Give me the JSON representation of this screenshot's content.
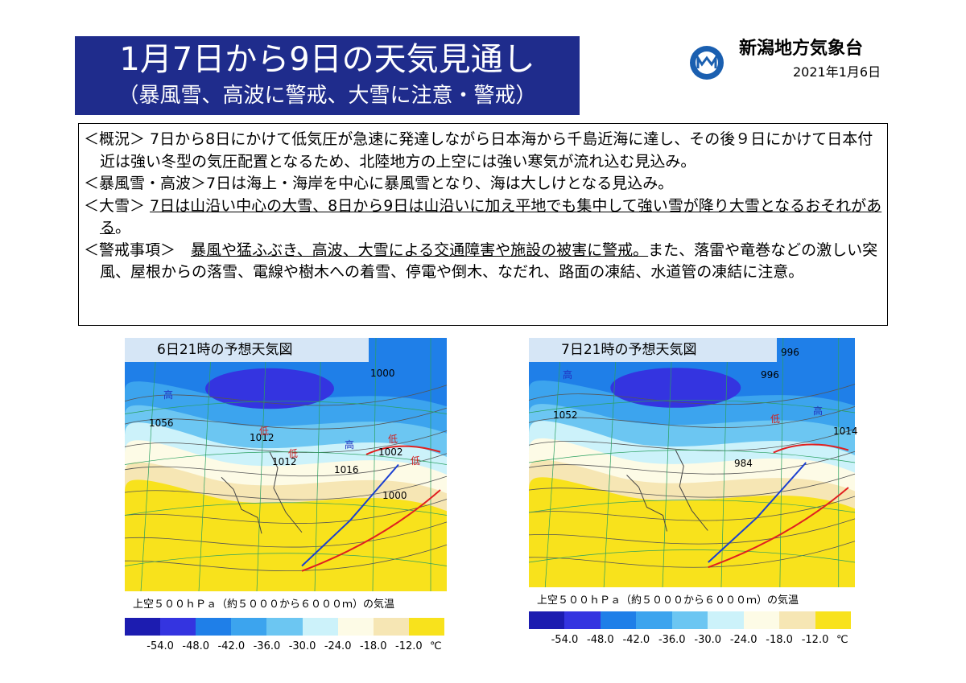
{
  "header": {
    "title": "1月7日から9日の天気見通し",
    "subtitle": "（暴風雪、高波に警戒、大雪に注意・警戒）",
    "agency": "新潟地方気象台",
    "date": "2021年1月6日"
  },
  "summary": {
    "paragraphs": [
      {
        "segments": [
          {
            "text": "＜概況＞ 7日から8日にかけて低気圧が急速に発達しながら日本海から千島近海に達し、その後９日にかけて日本付近は強い冬型の気圧配置となるため、北陸地方の上空には強い寒気が流れ込む見込み。",
            "underline": false
          }
        ]
      },
      {
        "segments": [
          {
            "text": "＜暴風雪・高波＞7日は海上・海岸を中心に暴風雪となり、海は大しけとなる見込み。",
            "underline": false
          }
        ]
      },
      {
        "segments": [
          {
            "text": "＜大雪＞ ",
            "underline": false
          },
          {
            "text": "7日は山沿い中心の大雪、8日から9日は山沿いに加え平地でも集中して強い雪が降り大雪となるおそれがある",
            "underline": true
          },
          {
            "text": "。",
            "underline": false
          }
        ]
      },
      {
        "segments": [
          {
            "text": "＜警戒事項＞　",
            "underline": false
          },
          {
            "text": "暴風や猛ふぶき、高波、大雪による交通障害や施設の被害に警戒。",
            "underline": true
          },
          {
            "text": "また、落雷や竜巻などの激しい突風、屋根からの落雪、電線や樹木への着雪、停電や倒木、なだれ、路面の凍結、水道管の凍結に注意。",
            "underline": false
          }
        ]
      }
    ]
  },
  "maps": [
    {
      "title": "6日21時の予想天気図",
      "labels": [
        "1000",
        "1056",
        "1012",
        "1012",
        "1016",
        "1002",
        "1000",
        "高",
        "高",
        "低",
        "低",
        "低",
        "低"
      ],
      "caption": "上空５００ｈＰａ（約５０００から６０００ｍ）の気温",
      "legend": {
        "labels": [
          "-54.0",
          "-48.0",
          "-42.0",
          "-36.0",
          "-30.0",
          "-24.0",
          "-18.0",
          "-12.0"
        ],
        "unit": "℃",
        "colors": [
          "#1c1cb0",
          "#3434e0",
          "#1f7fe8",
          "#3ca4ee",
          "#6cc6f2",
          "#ccf2fa",
          "#fdfbe6",
          "#f6e6b4",
          "#f8e21c"
        ]
      }
    },
    {
      "title": "7日21時の予想天気図",
      "labels": [
        "996",
        "996",
        "1052",
        "1014",
        "984",
        "高",
        "高",
        "低"
      ],
      "caption": "上空５００ｈＰａ（約５０００から６０００ｍ）の気温",
      "legend": {
        "labels": [
          "-54.0",
          "-48.0",
          "-42.0",
          "-36.0",
          "-30.0",
          "-24.0",
          "-18.0",
          "-12.0"
        ],
        "unit": "℃",
        "colors": [
          "#1c1cb0",
          "#3434e0",
          "#1f7fe8",
          "#3ca4ee",
          "#6cc6f2",
          "#ccf2fa",
          "#fdfbe6",
          "#f6e6b4",
          "#f8e21c"
        ]
      }
    }
  ]
}
